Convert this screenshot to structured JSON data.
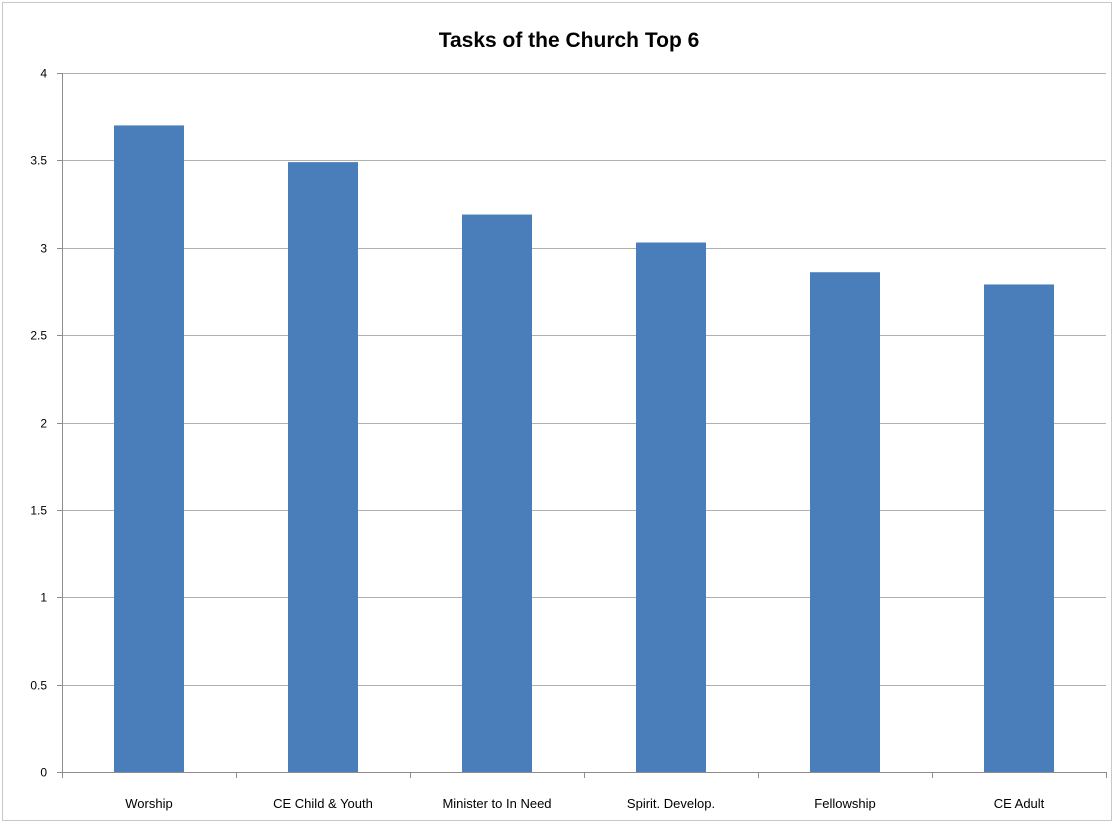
{
  "chart_data": {
    "type": "bar",
    "title": "Tasks of the Church Top 6",
    "xlabel": "",
    "ylabel": "",
    "categories": [
      "Worship",
      "CE Child & Youth",
      "Minister to In Need",
      "Spirit. Develop.",
      "Fellowship",
      "CE Adult"
    ],
    "values": [
      3.7,
      3.49,
      3.19,
      3.03,
      2.86,
      2.79
    ],
    "ylim": [
      0,
      4
    ],
    "yticks": [
      "0",
      "0.5",
      "1",
      "1.5",
      "2",
      "2.5",
      "3",
      "3.5",
      "4"
    ],
    "grid": true,
    "legend": "none",
    "colors": {
      "bar": "#4a7ebb",
      "grid": "#b0b0b0",
      "axis": "#8c8c8c"
    }
  }
}
